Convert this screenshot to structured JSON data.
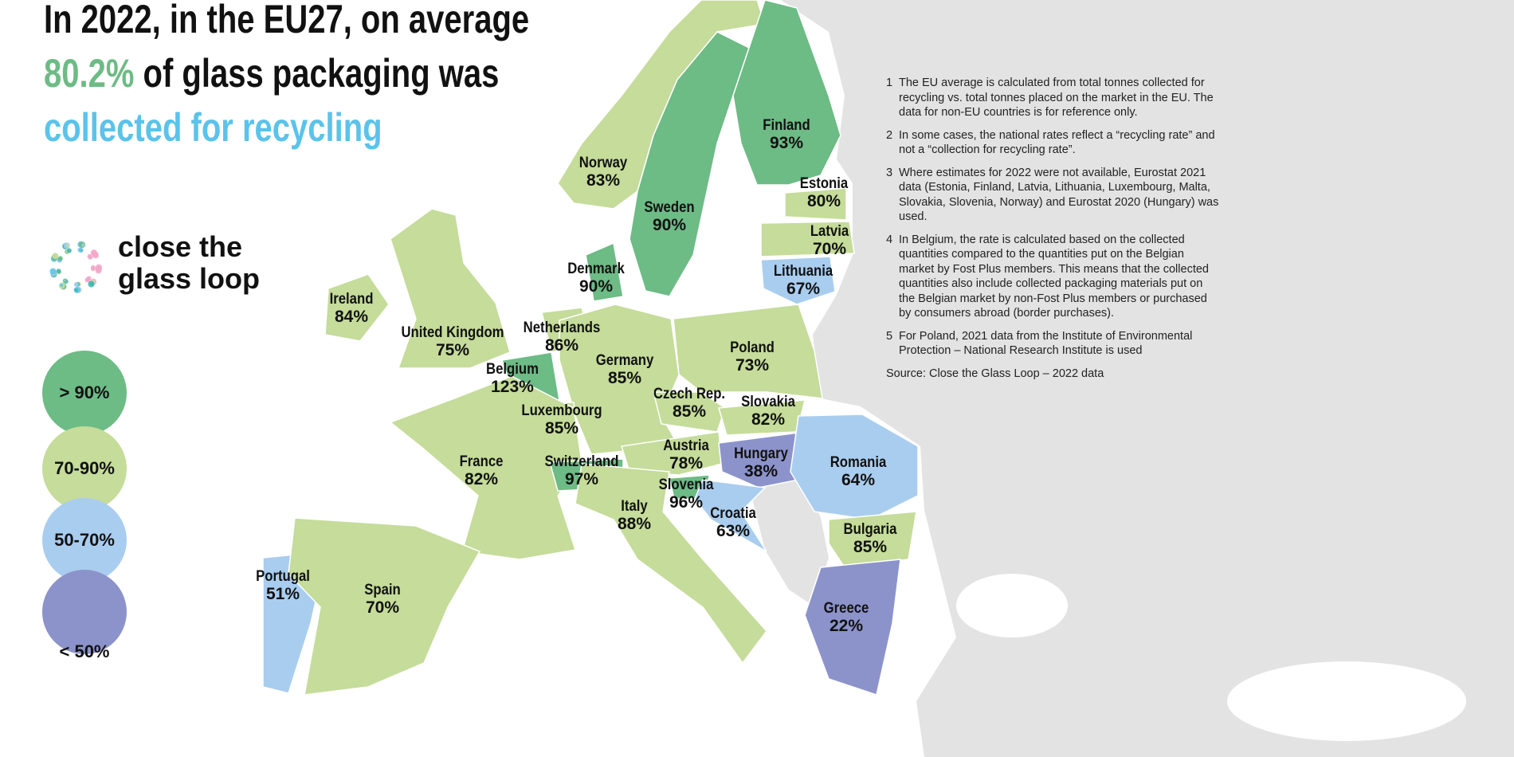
{
  "title": {
    "line1": "In 2022, in the EU27, on average",
    "highlight": "80.2%",
    "line2_rest": " of glass packaging was",
    "line3": "collected for recycling"
  },
  "brand": {
    "line1": "close the",
    "line2": "glass loop",
    "logo_icon": "dotted-ring-logo"
  },
  "colors": {
    "gt90": "#6dbb85",
    "70-90": "#c5dc9a",
    "50-70": "#a9cdef",
    "lt50": "#8c93cb",
    "non_eu": "#e3e3e3",
    "title_green": "#6dbb85",
    "title_blue": "#5bc3ea"
  },
  "legend": [
    {
      "key": "gt90",
      "label": "> 90%"
    },
    {
      "key": "70-90",
      "label": "70-90%"
    },
    {
      "key": "50-70",
      "label": "50-70%"
    },
    {
      "key": "lt50",
      "label": "< 50%"
    }
  ],
  "countries": [
    {
      "name": "Norway",
      "value": "83%",
      "cat": "70-90"
    },
    {
      "name": "Sweden",
      "value": "90%",
      "cat": "gt90"
    },
    {
      "name": "Finland",
      "value": "93%",
      "cat": "gt90"
    },
    {
      "name": "Estonia",
      "value": "80%",
      "cat": "70-90"
    },
    {
      "name": "Latvia",
      "value": "70%",
      "cat": "70-90"
    },
    {
      "name": "Lithuania",
      "value": "67%",
      "cat": "50-70"
    },
    {
      "name": "Denmark",
      "value": "90%",
      "cat": "gt90"
    },
    {
      "name": "Ireland",
      "value": "84%",
      "cat": "70-90"
    },
    {
      "name": "United Kingdom",
      "value": "75%",
      "cat": "70-90"
    },
    {
      "name": "Netherlands",
      "value": "86%",
      "cat": "70-90"
    },
    {
      "name": "Belgium",
      "value": "123%",
      "cat": "gt90"
    },
    {
      "name": "Germany",
      "value": "85%",
      "cat": "70-90"
    },
    {
      "name": "Poland",
      "value": "73%",
      "cat": "70-90"
    },
    {
      "name": "Czech Rep.",
      "value": "85%",
      "cat": "70-90"
    },
    {
      "name": "Slovakia",
      "value": "82%",
      "cat": "70-90"
    },
    {
      "name": "Luxembourg",
      "value": "85%",
      "cat": "70-90"
    },
    {
      "name": "France",
      "value": "82%",
      "cat": "70-90"
    },
    {
      "name": "Switzerland",
      "value": "97%",
      "cat": "gt90"
    },
    {
      "name": "Austria",
      "value": "78%",
      "cat": "70-90"
    },
    {
      "name": "Hungary",
      "value": "38%",
      "cat": "lt50"
    },
    {
      "name": "Romania",
      "value": "64%",
      "cat": "50-70"
    },
    {
      "name": "Slovenia",
      "value": "96%",
      "cat": "gt90"
    },
    {
      "name": "Croatia",
      "value": "63%",
      "cat": "50-70"
    },
    {
      "name": "Italy",
      "value": "88%",
      "cat": "70-90"
    },
    {
      "name": "Bulgaria",
      "value": "85%",
      "cat": "70-90"
    },
    {
      "name": "Portugal",
      "value": "51%",
      "cat": "50-70"
    },
    {
      "name": "Spain",
      "value": "70%",
      "cat": "70-90"
    },
    {
      "name": "Greece",
      "value": "22%",
      "cat": "lt50"
    }
  ],
  "notes": [
    {
      "num": "1",
      "text": "The EU average is calculated from total tonnes collected for recycling vs. total tonnes placed on the market in the EU. The data for non-EU countries is for reference only."
    },
    {
      "num": "2",
      "text": "In some cases, the national rates reflect a “recycling rate” and not a “collection for recycling rate”."
    },
    {
      "num": "3",
      "text": "Where estimates for 2022 were not available, Eurostat 2021 data (Estonia, Finland, Latvia, Lithuania, Luxembourg, Malta, Slovakia, Slovenia, Norway) and Eurostat 2020 (Hungary) was used."
    },
    {
      "num": "4",
      "text": "In Belgium, the rate is calculated based on the collected quantities compared to the quantities put on the Belgian market by Fost Plus members. This means that the collected quantities also include collected packaging materials put on the Belgian market by non-Fost Plus members or purchased by consumers abroad (border purchases)."
    },
    {
      "num": "5",
      "text": "For Poland, 2021 data from the Institute of Environmental Protection – National Research Institute is used"
    }
  ],
  "source": "Source: Close the Glass Loop – 2022 data"
}
